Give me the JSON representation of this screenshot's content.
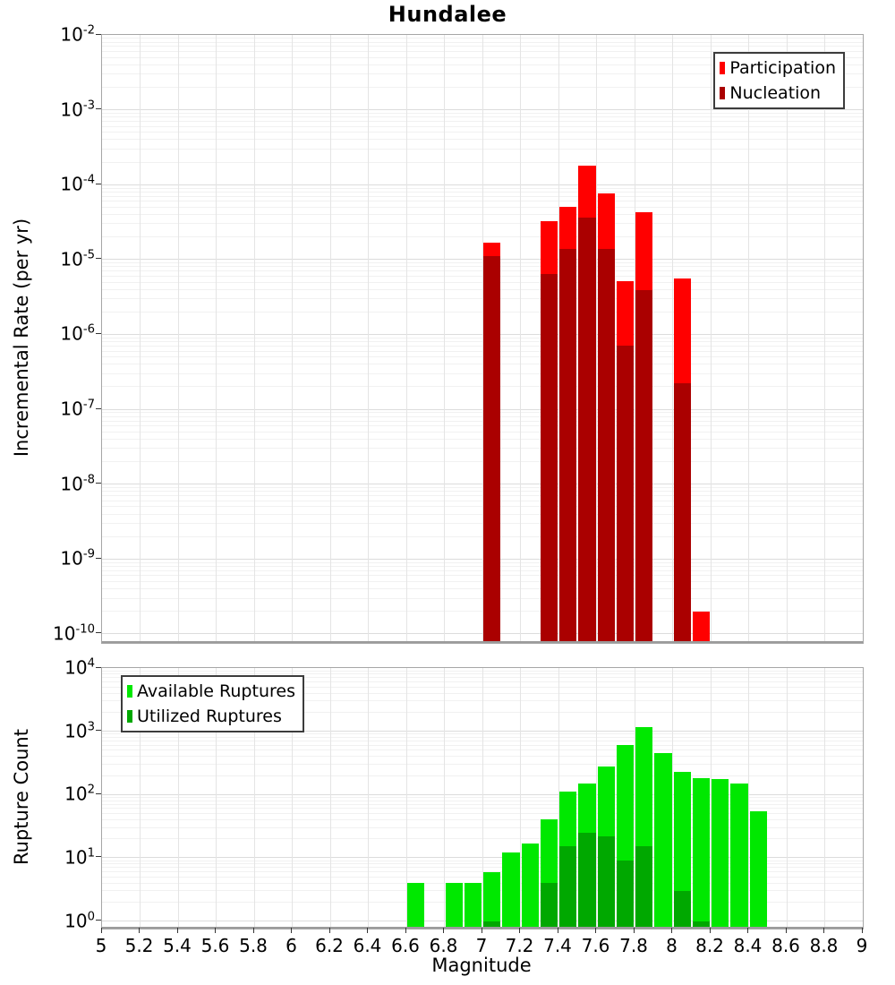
{
  "title": "Hundalee",
  "colors": {
    "participation": "#ff0000",
    "nucleation": "#aa0000",
    "available": "#00e800",
    "utilized": "#00a800",
    "grid_major": "#dcdcdc",
    "grid_minor": "#f1f1f1",
    "grid_vertical": "#e4e4e4",
    "axis_border": "#a6a6a6",
    "axis_line": "#9b9b9b",
    "tick": "#333333",
    "text": "#000000",
    "legend_border": "#3c3c3c"
  },
  "x_ticks": [
    5,
    5.2,
    5.4,
    5.6,
    5.8,
    6,
    6.2,
    6.4,
    6.6,
    6.8,
    7,
    7.2,
    7.4,
    7.6,
    7.8,
    8,
    8.2,
    8.4,
    8.6,
    8.8,
    9
  ],
  "chart_data": [
    {
      "type": "bar",
      "title": "Hundalee",
      "xlabel": "Magnitude",
      "ylabel": "Incremental Rate (per yr)",
      "xlim": [
        5,
        9
      ],
      "x_tick_step": 0.2,
      "ylim": [
        1e-10,
        0.01
      ],
      "y_scale": "log",
      "y_pad_decades": 0.12,
      "y_tick_exponents": [
        -2,
        -3,
        -4,
        -5,
        -6,
        -7,
        -8,
        -9,
        -10
      ],
      "bin_width": 0.1,
      "grid": true,
      "legend_position": "top-right",
      "x": [
        7.05,
        7.35,
        7.45,
        7.55,
        7.65,
        7.75,
        7.85,
        8.05,
        8.15
      ],
      "series": [
        {
          "name": "Participation",
          "color": "#ff0000",
          "values": [
            1.7e-05,
            3.3e-05,
            5e-05,
            0.00018,
            7.6e-05,
            5.2e-06,
            4.3e-05,
            5.6e-06,
            2e-10
          ]
        },
        {
          "name": "Nucleation",
          "color": "#aa0000",
          "values": [
            1.1e-05,
            6.4e-06,
            1.4e-05,
            3.6e-05,
            1.4e-05,
            7.1e-07,
            3.9e-06,
            2.2e-07,
            null
          ]
        }
      ]
    },
    {
      "type": "bar",
      "title": "",
      "xlabel": "Magnitude",
      "ylabel": "Rupture Count",
      "xlim": [
        5,
        9
      ],
      "x_tick_step": 0.2,
      "ylim": [
        1,
        10000.0
      ],
      "y_scale": "log",
      "y_pad_decades": 0.12,
      "y_tick_exponents": [
        4,
        3,
        2,
        1,
        0
      ],
      "bin_width": 0.1,
      "grid": true,
      "legend_position": "top-left",
      "x": [
        6.65,
        6.85,
        6.95,
        7.05,
        7.15,
        7.25,
        7.35,
        7.45,
        7.55,
        7.65,
        7.75,
        7.85,
        7.95,
        8.05,
        8.15,
        8.25,
        8.35,
        8.45
      ],
      "series": [
        {
          "name": "Available Ruptures",
          "color": "#00e800",
          "values": [
            4,
            4,
            4,
            6,
            12,
            17,
            41,
            110,
            150,
            280,
            600,
            1150,
            450,
            230,
            180,
            175,
            150,
            55
          ]
        },
        {
          "name": "Utilized Ruptures",
          "color": "#00a800",
          "values": [
            0,
            0,
            0,
            1,
            0,
            0,
            4,
            15,
            25,
            22,
            9,
            15,
            0,
            3,
            1,
            0,
            0,
            0
          ]
        }
      ]
    }
  ]
}
